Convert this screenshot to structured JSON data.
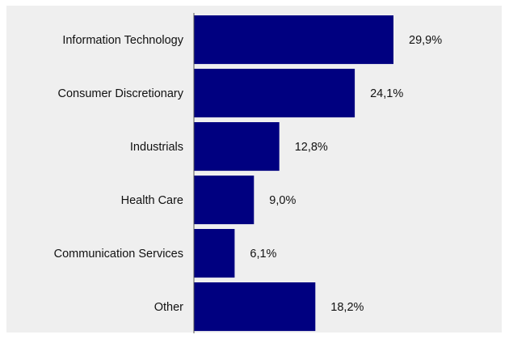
{
  "chart_data": {
    "type": "bar",
    "orientation": "horizontal",
    "categories": [
      "Information Technology",
      "Consumer Discretionary",
      "Industrials",
      "Health Care",
      "Communication Services",
      "Other"
    ],
    "values": [
      29.9,
      24.1,
      12.8,
      9.0,
      6.1,
      18.2
    ],
    "value_labels": [
      "29,9%",
      "24,1%",
      "12,8%",
      "9,0%",
      "6,1%",
      "18,2%"
    ],
    "xlim": [
      0,
      36
    ],
    "grid": false,
    "legend": "none",
    "colors": {
      "bar": "#000080",
      "background": "#efefef",
      "axis": "#555555"
    }
  }
}
